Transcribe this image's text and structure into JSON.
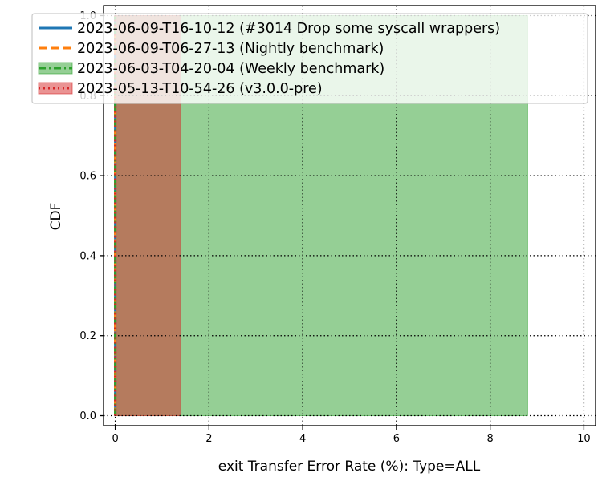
{
  "chart_data": {
    "type": "line",
    "xlabel": "exit Transfer Error Rate (%): Type=ALL",
    "ylabel": "CDF",
    "xlim": [
      -0.25,
      10.25
    ],
    "ylim": [
      -0.025,
      1.025
    ],
    "xticks": [
      0,
      2,
      4,
      6,
      8,
      10
    ],
    "yticks": [
      0.0,
      0.2,
      0.4,
      0.6,
      0.8,
      1.0
    ],
    "xtick_labels": [
      "0",
      "2",
      "4",
      "6",
      "8",
      "10"
    ],
    "ytick_labels": [
      "0.0",
      "0.2",
      "0.4",
      "0.6",
      "0.8",
      "1.0"
    ],
    "grid": true,
    "legend_position": "top",
    "series": [
      {
        "name": "2023-06-09-T16-10-12 (#3014 Drop some syscall wrappers)",
        "color": "#1f77b4",
        "line_style": "solid",
        "x": [
          0,
          0
        ],
        "y": [
          0.0,
          1.0
        ],
        "band": null
      },
      {
        "name": "2023-06-09-T06-27-13 (Nightly benchmark)",
        "color": "#ff7f0e",
        "line_style": "dashed",
        "x": [
          0,
          0
        ],
        "y": [
          0.0,
          1.0
        ],
        "band": null
      },
      {
        "name": "2023-06-03-T04-20-04 (Weekly benchmark)",
        "color": "#2ca02c",
        "line_style": "dashdot",
        "x": [
          0,
          0
        ],
        "y": [
          0.0,
          1.0
        ],
        "band": [
          0,
          8.8
        ]
      },
      {
        "name": "2023-05-13-T10-54-26 (v3.0.0-pre)",
        "color": "#d62728",
        "line_style": "dotted",
        "x": [
          0,
          0
        ],
        "y": [
          0.0,
          1.0
        ],
        "band": [
          0,
          1.4
        ]
      }
    ]
  }
}
